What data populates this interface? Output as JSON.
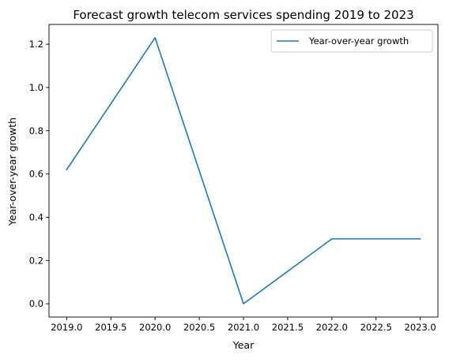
{
  "chart_data": {
    "type": "line",
    "title": "Forecast growth telecom services spending 2019 to 2023",
    "xlabel": "Year",
    "ylabel": "Year-over-year growth",
    "x": [
      2019.0,
      2020.0,
      2021.0,
      2022.0,
      2023.0
    ],
    "series": [
      {
        "name": "Year-over-year growth",
        "values": [
          0.62,
          1.23,
          0.0,
          0.3,
          0.3
        ],
        "color": "#1f77b4"
      }
    ],
    "xlim": [
      2018.8,
      2023.2
    ],
    "ylim": [
      -0.0615,
      1.2915
    ],
    "x_ticks": [
      2019.0,
      2019.5,
      2020.0,
      2020.5,
      2021.0,
      2021.5,
      2022.0,
      2022.5,
      2023.0
    ],
    "x_tick_labels": [
      "2019.0",
      "2019.5",
      "2020.0",
      "2020.5",
      "2021.0",
      "2021.5",
      "2022.0",
      "2022.5",
      "2023.0"
    ],
    "y_ticks": [
      0.0,
      0.2,
      0.4,
      0.6,
      0.8,
      1.0,
      1.2
    ],
    "y_tick_labels": [
      "0.0",
      "0.2",
      "0.4",
      "0.6",
      "0.8",
      "1.0",
      "1.2"
    ],
    "grid": false,
    "legend_position": "top-right"
  }
}
